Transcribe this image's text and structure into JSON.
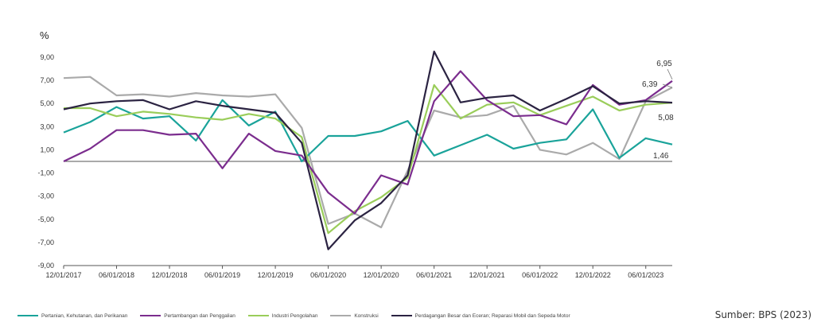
{
  "chart_data": {
    "type": "line",
    "ylabel": "%",
    "ylim": [
      -9,
      9
    ],
    "yticks": [
      "9,00",
      "7,00",
      "5,00",
      "3,00",
      "1,00",
      "-1,00",
      "-3,00",
      "-5,00",
      "-7,00",
      "-9,00"
    ],
    "x_tick_labels": [
      "12/01/2017",
      "06/01/2018",
      "12/01/2018",
      "06/01/2019",
      "12/01/2019",
      "06/01/2020",
      "12/01/2020",
      "06/01/2021",
      "12/01/2021",
      "06/01/2022",
      "12/01/2022",
      "06/01/2023"
    ],
    "x": [
      "2017-12",
      "2018-03",
      "2018-06",
      "2018-09",
      "2018-12",
      "2019-03",
      "2019-06",
      "2019-09",
      "2019-12",
      "2020-03",
      "2020-06",
      "2020-09",
      "2020-12",
      "2021-03",
      "2021-06",
      "2021-09",
      "2021-12",
      "2022-03",
      "2022-06",
      "2022-09",
      "2022-12",
      "2023-03",
      "2023-06",
      "2023-09"
    ],
    "series": [
      {
        "name": "Pertanian, Kehutanan, dan Perikanan",
        "color": "#1aa39a",
        "values": [
          2.5,
          3.4,
          4.7,
          3.7,
          3.9,
          1.8,
          5.3,
          3.1,
          4.3,
          0.0,
          2.2,
          2.2,
          2.6,
          3.5,
          0.5,
          1.4,
          2.3,
          1.1,
          1.6,
          1.9,
          4.5,
          0.3,
          2.0,
          1.46
        ]
      },
      {
        "name": "Pertambangan dan Penggalian",
        "color": "#7b2d8e",
        "values": [
          0.0,
          1.1,
          2.7,
          2.7,
          2.3,
          2.4,
          -0.6,
          2.4,
          0.9,
          0.5,
          -2.7,
          -4.5,
          -1.2,
          -2.0,
          5.2,
          7.8,
          5.3,
          3.9,
          4.0,
          3.2,
          6.6,
          4.9,
          5.3,
          6.95
        ]
      },
      {
        "name": "Industri Pengolahan",
        "color": "#9acd5a",
        "values": [
          4.6,
          4.6,
          3.9,
          4.3,
          4.1,
          3.8,
          3.6,
          4.1,
          3.7,
          2.1,
          -6.2,
          -4.3,
          -3.1,
          -1.4,
          6.6,
          3.7,
          4.9,
          5.1,
          4.0,
          4.8,
          5.6,
          4.4,
          4.9,
          5.08
        ]
      },
      {
        "name": "Konstruksi",
        "color": "#aaaaaa",
        "values": [
          7.2,
          7.3,
          5.7,
          5.8,
          5.6,
          5.9,
          5.7,
          5.6,
          5.8,
          2.9,
          -5.4,
          -4.5,
          -5.7,
          -0.8,
          4.4,
          3.8,
          4.0,
          4.8,
          1.0,
          0.6,
          1.6,
          0.2,
          5.2,
          6.39
        ]
      },
      {
        "name": "Perdagangan Besar dan Eceran; Reparasi Mobil dan Sepeda Motor",
        "color": "#2b2342",
        "values": [
          4.5,
          5.0,
          5.2,
          5.3,
          4.5,
          5.2,
          4.8,
          4.5,
          4.2,
          1.6,
          -7.6,
          -5.1,
          -3.6,
          -1.2,
          9.5,
          5.1,
          5.5,
          5.7,
          4.4,
          5.4,
          6.5,
          5.0,
          5.2,
          5.08
        ]
      }
    ],
    "end_labels": [
      "6,95",
      "6,39",
      "5,08",
      "1,46"
    ],
    "legend_position": "bottom",
    "grid": false
  },
  "source": "Sumber: BPS (2023)"
}
